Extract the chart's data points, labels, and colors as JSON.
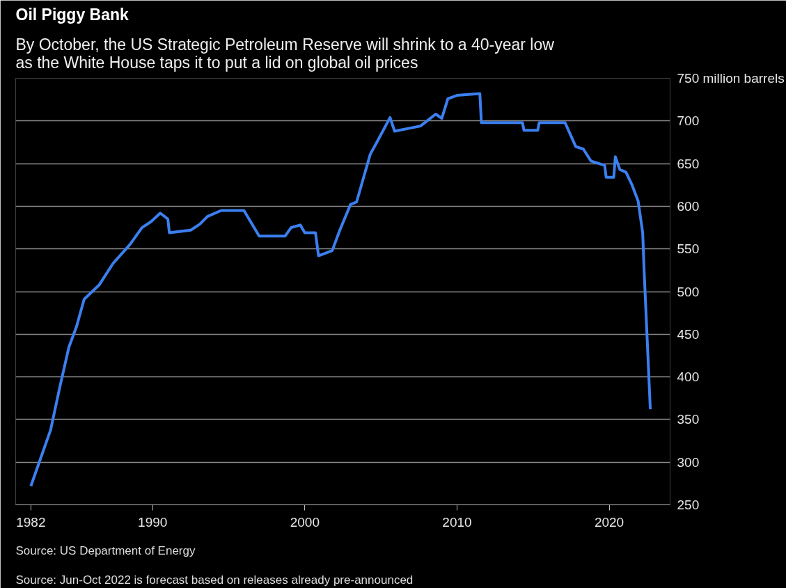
{
  "chart_data": {
    "type": "line",
    "title": "Oil Piggy Bank",
    "subtitle": "By October, the US Strategic Petroleum Reserve will shrink to a 40-year low\nas the White House taps it to put a lid on global oil prices",
    "x": [
      1982.0,
      1983.3,
      1983.9,
      1984.5,
      1985.0,
      1985.5,
      1986.5,
      1987.4,
      1988.5,
      1989.3,
      1989.9,
      1990.5,
      1991.0,
      1991.1,
      1992.5,
      1993.1,
      1993.6,
      1994.5,
      1996.0,
      1997.0,
      1998.7,
      1999.1,
      1999.7,
      2000.0,
      2000.7,
      2000.9,
      2001.8,
      2002.3,
      2003.0,
      2003.4,
      2004.3,
      2004.7,
      2005.6,
      2005.9,
      2007.6,
      2008.6,
      2009.0,
      2009.4,
      2010.0,
      2011.5,
      2011.6,
      2014.3,
      2014.4,
      2015.3,
      2015.4,
      2017.1,
      2017.8,
      2018.3,
      2018.8,
      2019.7,
      2019.8,
      2020.3,
      2020.4,
      2020.7,
      2021.1,
      2021.5,
      2021.9,
      2022.2,
      2022.3,
      2022.7
    ],
    "series": [
      {
        "color": "#3b7ff0",
        "values": [
          272,
          338,
          388,
          435,
          459,
          491,
          508,
          533,
          555,
          575,
          582,
          592,
          585,
          569,
          572,
          579,
          588,
          595,
          595,
          565,
          565,
          575,
          578,
          569,
          569,
          542,
          548,
          572,
          602,
          605,
          661,
          674,
          704,
          688,
          694,
          708,
          703,
          726,
          730,
          732,
          698,
          698,
          689,
          689,
          698,
          698,
          670,
          667,
          653,
          648,
          634,
          634,
          658,
          643,
          640,
          625,
          606,
          569,
          522,
          362
        ]
      }
    ],
    "xlim": [
      1981.0,
      2024.0
    ],
    "xticks": [
      1982,
      1990,
      2000,
      2010,
      2020
    ],
    "ylim": [
      250,
      750
    ],
    "yticks": [
      250,
      300,
      350,
      400,
      450,
      500,
      550,
      600,
      650,
      700,
      {
        "value": 750,
        "label": "750 million barrels"
      }
    ],
    "grid": "y",
    "line_style": "solid",
    "annotations": [
      "Source: US Department of Energy",
      "Source: Jun-Oct 2022 is forecast based on releases already pre-announced"
    ]
  }
}
